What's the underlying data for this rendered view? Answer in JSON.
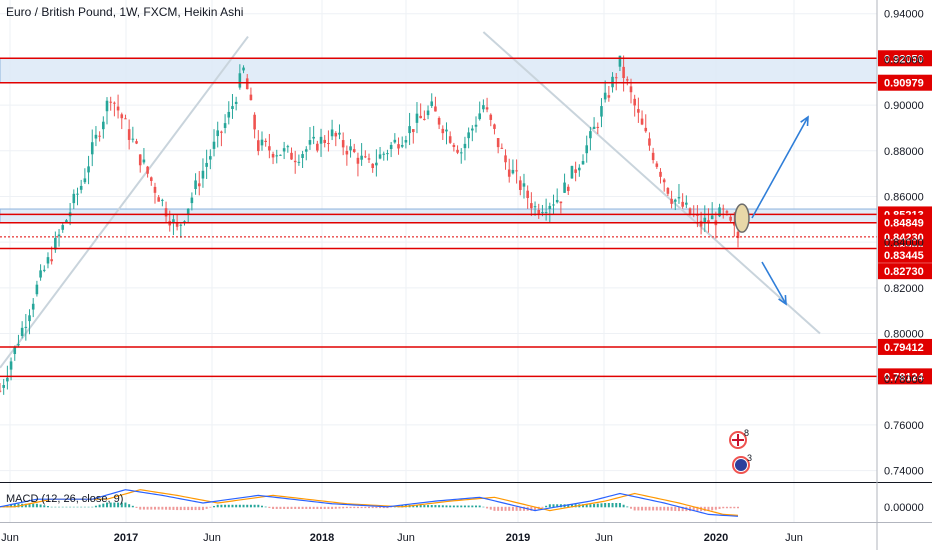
{
  "header": {
    "title": "Euro / British Pound, 1W, FXCM, Heikin Ashi"
  },
  "macd": {
    "label": "MACD (12, 26, close, 9)",
    "axis_value": "0.00000"
  },
  "colors": {
    "up": "#26a69a",
    "down": "#ef5350",
    "level": "#e00000",
    "zone_fill": "#dce9f7",
    "zone_border": "#7aa6d8",
    "trend_line": "#c9d4dc",
    "forecast_arrow": "#2f7ed8",
    "macd_line": "#2962ff",
    "signal_line": "#ff9800"
  },
  "events": {
    "uk_count": "8",
    "eu_count": "3"
  },
  "chart_data": {
    "type": "candlestick",
    "title": "Euro / British Pound, 1W, FXCM, Heikin Ashi",
    "ylim": [
      0.735,
      0.946
    ],
    "y_ticks": [
      "0.74000",
      "0.76000",
      "0.78000",
      "0.80000",
      "0.82000",
      "0.84000",
      "0.86000",
      "0.88000",
      "0.90000",
      "0.92000",
      "0.94000"
    ],
    "x_ticks": [
      "Jun",
      "2017",
      "Jun",
      "2018",
      "Jun",
      "2019",
      "Jun",
      "2020",
      "Jun"
    ],
    "grid": true,
    "levels": [
      {
        "price": 0.9205,
        "label": "0.92050",
        "style": "line"
      },
      {
        "price": 0.90979,
        "label": "0.90979",
        "style": "line"
      },
      {
        "price": 0.85213,
        "label": "0.85213",
        "style": "line"
      },
      {
        "price": 0.84849,
        "label": "0.84849",
        "style": "line"
      },
      {
        "price": 0.8423,
        "label": "0.84230",
        "style": "dotted"
      },
      {
        "price": 0.8372,
        "label": "0.83720",
        "style": "line"
      },
      {
        "price": 0.83445,
        "label": "0.83445",
        "style": "none"
      },
      {
        "price": 0.8273,
        "label": "0.82730",
        "style": "none"
      },
      {
        "price": 0.79412,
        "label": "0.79412",
        "style": "line"
      },
      {
        "price": 0.78124,
        "label": "0.78124",
        "style": "line"
      }
    ],
    "zones": [
      {
        "from": 0.9098,
        "to": 0.9205
      },
      {
        "from": 0.8485,
        "to": 0.8545
      }
    ],
    "anchors": [
      {
        "week": 0,
        "value": 0.775
      },
      {
        "week": 10,
        "value": 0.82
      },
      {
        "week": 22,
        "value": 0.865
      },
      {
        "week": 30,
        "value": 0.905
      },
      {
        "week": 40,
        "value": 0.87
      },
      {
        "week": 48,
        "value": 0.845
      },
      {
        "week": 56,
        "value": 0.875
      },
      {
        "week": 62,
        "value": 0.895
      },
      {
        "week": 66,
        "value": 0.915
      },
      {
        "week": 70,
        "value": 0.882
      },
      {
        "week": 80,
        "value": 0.878
      },
      {
        "week": 90,
        "value": 0.887
      },
      {
        "week": 100,
        "value": 0.873
      },
      {
        "week": 110,
        "value": 0.888
      },
      {
        "week": 117,
        "value": 0.898
      },
      {
        "week": 125,
        "value": 0.88
      },
      {
        "week": 131,
        "value": 0.9
      },
      {
        "week": 137,
        "value": 0.875
      },
      {
        "week": 145,
        "value": 0.855
      },
      {
        "week": 152,
        "value": 0.86
      },
      {
        "week": 160,
        "value": 0.885
      },
      {
        "week": 166,
        "value": 0.91
      },
      {
        "week": 168,
        "value": 0.918
      },
      {
        "week": 174,
        "value": 0.89
      },
      {
        "week": 182,
        "value": 0.86
      },
      {
        "week": 190,
        "value": 0.848
      },
      {
        "week": 196,
        "value": 0.852
      },
      {
        "week": 200,
        "value": 0.842
      }
    ],
    "macd_range": [
      -0.004,
      0.006
    ],
    "macd_anchors": [
      {
        "week": 0,
        "value": 0.0
      },
      {
        "week": 10,
        "value": 0.002
      },
      {
        "week": 25,
        "value": 0.002
      },
      {
        "week": 34,
        "value": 0.0045
      },
      {
        "week": 44,
        "value": 0.003
      },
      {
        "week": 55,
        "value": 0.001
      },
      {
        "week": 70,
        "value": 0.003
      },
      {
        "week": 90,
        "value": 0.0008
      },
      {
        "week": 105,
        "value": 0.0
      },
      {
        "week": 118,
        "value": 0.0015
      },
      {
        "week": 130,
        "value": 0.0025
      },
      {
        "week": 145,
        "value": -0.001
      },
      {
        "week": 160,
        "value": 0.0015
      },
      {
        "week": 168,
        "value": 0.0035
      },
      {
        "week": 180,
        "value": 0.001
      },
      {
        "week": 192,
        "value": -0.002
      },
      {
        "week": 200,
        "value": -0.0025
      }
    ]
  }
}
